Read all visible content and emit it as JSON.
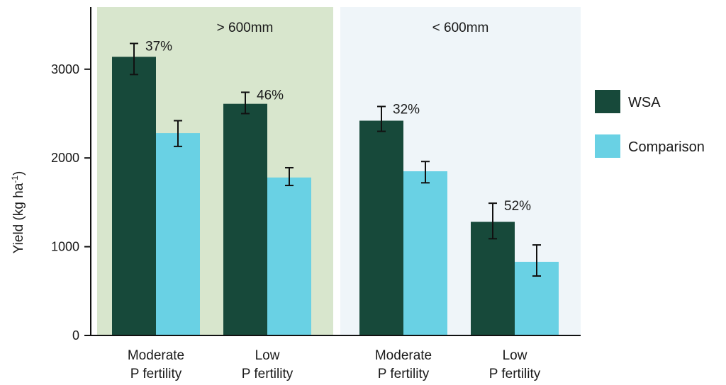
{
  "chart_data": {
    "type": "bar",
    "ylabel": "Yield (kg ha",
    "ylabel_sup": "-1",
    "ylabel_close": ")",
    "ylim": [
      0,
      3700
    ],
    "yticks": [
      0,
      1000,
      2000,
      3000
    ],
    "ytick_labels": [
      "0",
      "1000",
      "2000",
      "3000"
    ],
    "panels": [
      {
        "label": "> 600mm",
        "color": "#d8e6cd"
      },
      {
        "label": "< 600mm",
        "color": "#eff5f9"
      }
    ],
    "groups": [
      {
        "panel": 0,
        "label_line1": "Moderate",
        "label_line2": "P fertility",
        "pct": "37%"
      },
      {
        "panel": 0,
        "label_line1": "Low",
        "label_line2": "P fertility",
        "pct": "46%"
      },
      {
        "panel": 1,
        "label_line1": "Moderate",
        "label_line2": "P fertility",
        "pct": "32%"
      },
      {
        "panel": 1,
        "label_line1": "Low",
        "label_line2": "P fertility",
        "pct": "52%"
      }
    ],
    "series": [
      {
        "name": "WSA",
        "color": "#17493a",
        "values": [
          3140,
          2610,
          2420,
          1280
        ],
        "err_low": [
          2940,
          2500,
          2300,
          1090
        ],
        "err_high": [
          3290,
          2740,
          2580,
          1490
        ]
      },
      {
        "name": "Comparison",
        "color": "#69d1e4",
        "values": [
          2280,
          1780,
          1850,
          830
        ],
        "err_low": [
          2130,
          1690,
          1720,
          670
        ],
        "err_high": [
          2420,
          1890,
          1960,
          1020
        ]
      }
    ],
    "legend": "right"
  }
}
